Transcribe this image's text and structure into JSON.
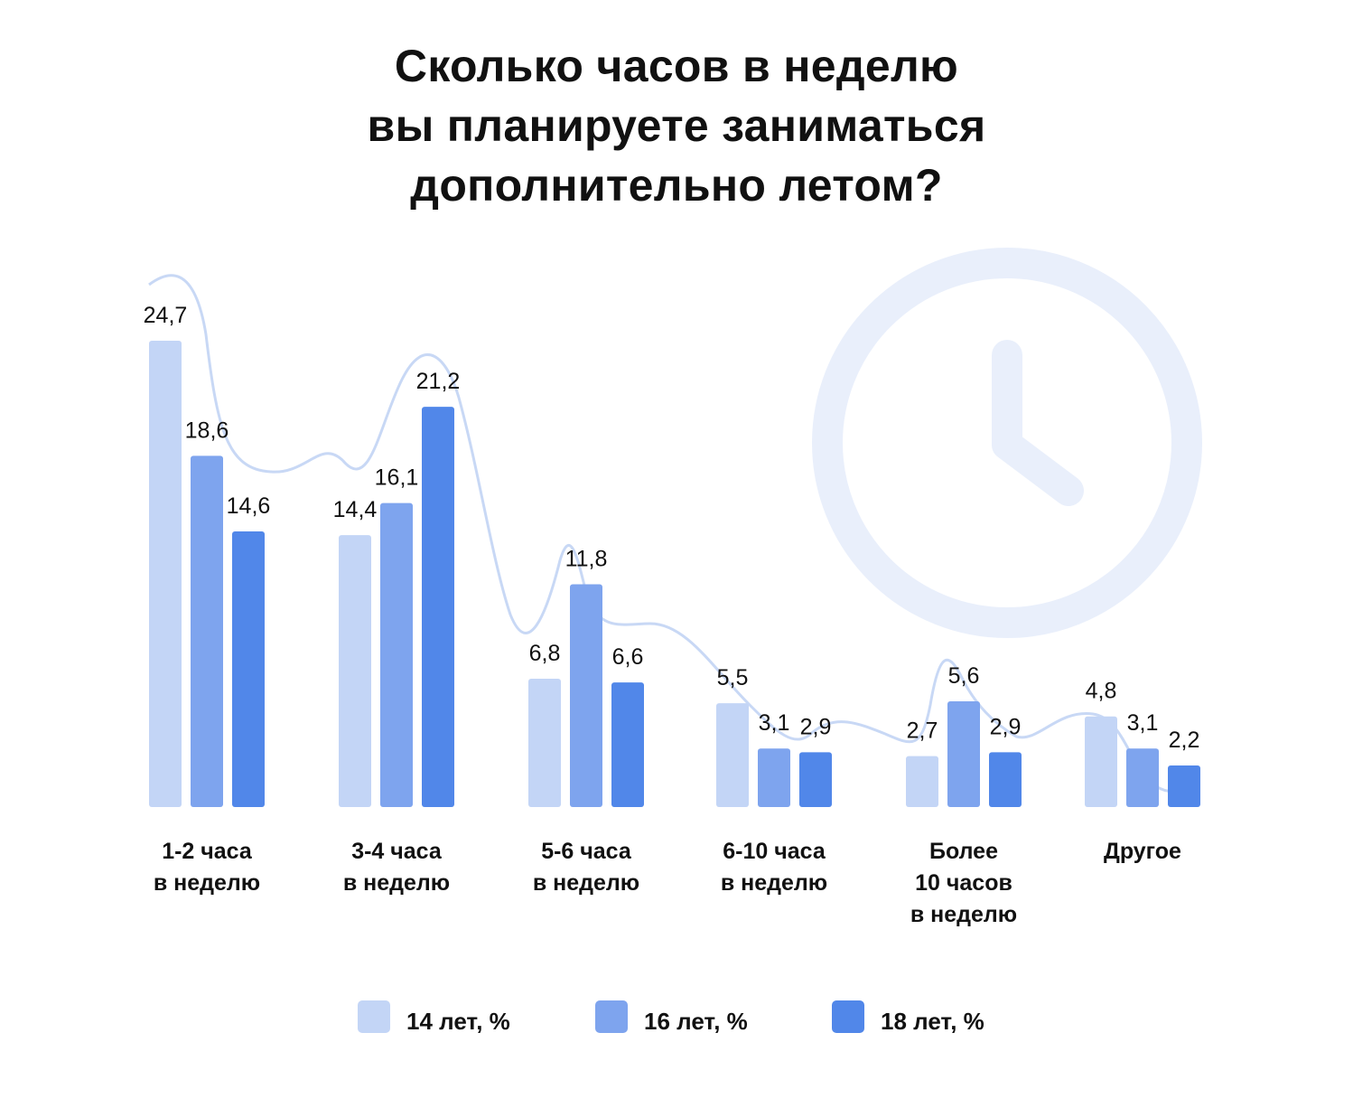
{
  "title_lines": [
    "Сколько часов в неделю",
    "вы планируете заниматься",
    "дополнительно летом?"
  ],
  "colors": {
    "s14": "#c3d5f6",
    "s16": "#7ea4ee",
    "s18": "#5187e9",
    "decor": "#e9effb",
    "curve": "#c8d8f5"
  },
  "decor_icon": "clock-icon",
  "chart_data": {
    "type": "bar",
    "title": "Сколько часов в неделю вы планируете заниматься дополнительно летом?",
    "categories": [
      [
        "1-2 часа",
        "в неделю"
      ],
      [
        "3-4 часа",
        "в неделю"
      ],
      [
        "5-6 часа",
        "в неделю"
      ],
      [
        "6-10 часа",
        "в неделю"
      ],
      [
        "Более",
        "10 часов",
        "в неделю"
      ],
      [
        "Другое"
      ]
    ],
    "series": [
      {
        "name": "14 лет, %",
        "values": [
          24.7,
          14.4,
          6.8,
          5.5,
          2.7,
          4.8
        ],
        "labels": [
          "24,7",
          "14,4",
          "6,8",
          "5,5",
          "2,7",
          "4,8"
        ]
      },
      {
        "name": "16 лет, %",
        "values": [
          18.6,
          16.1,
          11.8,
          3.1,
          5.6,
          3.1
        ],
        "labels": [
          "18,6",
          "16,1",
          "11,8",
          "3,1",
          "5,6",
          "3,1"
        ]
      },
      {
        "name": "18 лет, %",
        "values": [
          14.6,
          21.2,
          6.6,
          2.9,
          2.9,
          2.2
        ],
        "labels": [
          "14,6",
          "21,2",
          "6,6",
          "2,9",
          "2,9",
          "2,2"
        ]
      }
    ],
    "xlabel": "",
    "ylabel": "",
    "ylim": [
      0,
      24.7
    ],
    "grid": false,
    "legend": "bottom"
  }
}
